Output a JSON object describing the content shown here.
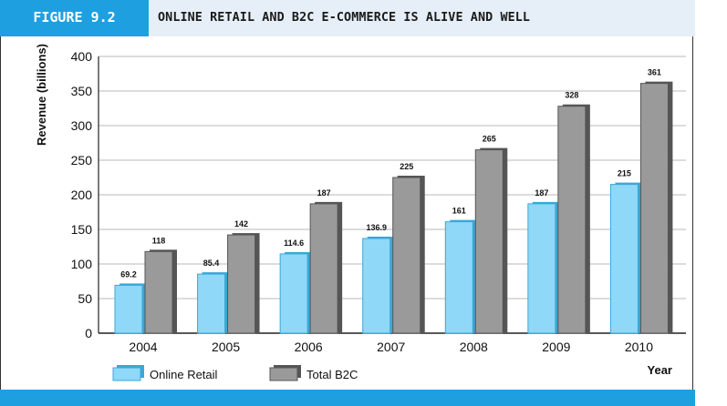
{
  "figure": {
    "tag": "FIGURE 9.2",
    "title": "ONLINE RETAIL AND B2C E-COMMERCE IS ALIVE AND WELL"
  },
  "colors": {
    "header_accent": "#1ea0e0",
    "online_retail": "#8fd8f8",
    "total_b2c": "#9a9a9a"
  },
  "chart_data": {
    "type": "bar",
    "title": "",
    "xlabel": "Year",
    "ylabel": "Revenue (billions)",
    "ylim": [
      0,
      400
    ],
    "yticks": [
      0,
      50,
      100,
      150,
      200,
      250,
      300,
      350,
      400
    ],
    "grid": true,
    "legend_position": "bottom-left",
    "categories": [
      "2004",
      "2005",
      "2006",
      "2007",
      "2008",
      "2009",
      "2010"
    ],
    "series": [
      {
        "name": "Online Retail",
        "values": [
          69.2,
          85.4,
          114.6,
          136.9,
          161,
          187,
          215
        ],
        "labels": [
          "69.2",
          "85.4",
          "114.6",
          "136.9",
          "161",
          "187",
          "215"
        ]
      },
      {
        "name": "Total B2C",
        "values": [
          118,
          142,
          187,
          225,
          265,
          328,
          361
        ],
        "labels": [
          "118",
          "142",
          "187",
          "225",
          "265",
          "328",
          "361"
        ]
      }
    ]
  }
}
